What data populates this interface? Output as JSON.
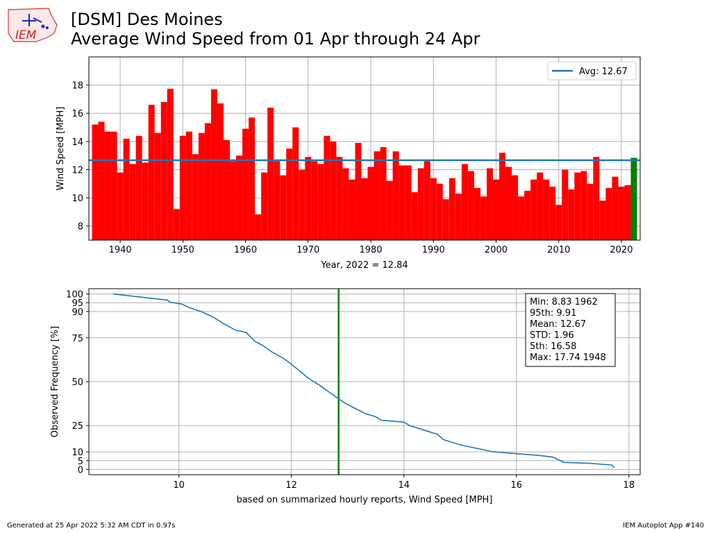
{
  "header": {
    "logo_text": "IEM",
    "title_line1": "[DSM] Des Moines",
    "title_line2": "Average Wind Speed from 01 Apr through 24 Apr"
  },
  "footer": {
    "left": "Generated at 25 Apr 2022 5:32 AM CDT in 0.97s",
    "right": "IEM Autoplot App #140"
  },
  "colors": {
    "bar": "#ff0000",
    "highlight_bar": "#008000",
    "avg_line": "#1f77b4",
    "vline": "#008000"
  },
  "chart_data": [
    {
      "type": "bar",
      "xlabel": "Year, 2022 = 12.84",
      "ylabel": "Wind Speed [MPH]",
      "xlim": [
        1935,
        2023
      ],
      "ylim": [
        7,
        20
      ],
      "xticks": [
        1940,
        1950,
        1960,
        1970,
        1980,
        1990,
        2000,
        2010,
        2020
      ],
      "yticks": [
        8,
        10,
        12,
        14,
        16,
        18
      ],
      "grid": true,
      "legend": {
        "label": "Avg: 12.67",
        "position": "upper right"
      },
      "average": 12.67,
      "highlight_year": 2022,
      "x": [
        1936,
        1937,
        1938,
        1939,
        1940,
        1941,
        1942,
        1943,
        1944,
        1945,
        1946,
        1947,
        1948,
        1949,
        1950,
        1951,
        1952,
        1953,
        1954,
        1955,
        1956,
        1957,
        1958,
        1959,
        1960,
        1961,
        1962,
        1963,
        1964,
        1965,
        1966,
        1967,
        1968,
        1969,
        1970,
        1971,
        1972,
        1973,
        1974,
        1975,
        1976,
        1977,
        1978,
        1979,
        1980,
        1981,
        1982,
        1983,
        1984,
        1985,
        1986,
        1987,
        1988,
        1989,
        1990,
        1991,
        1992,
        1993,
        1994,
        1995,
        1996,
        1997,
        1998,
        1999,
        2000,
        2001,
        2002,
        2003,
        2004,
        2005,
        2006,
        2007,
        2008,
        2009,
        2010,
        2011,
        2012,
        2013,
        2014,
        2015,
        2016,
        2017,
        2018,
        2019,
        2020,
        2021,
        2022
      ],
      "values": [
        15.2,
        15.4,
        14.7,
        14.7,
        11.8,
        14.2,
        12.4,
        14.4,
        12.5,
        16.6,
        14.6,
        16.8,
        17.74,
        9.2,
        14.4,
        14.7,
        13.1,
        14.6,
        15.3,
        17.7,
        16.7,
        14.1,
        12.6,
        13.0,
        14.9,
        15.7,
        8.83,
        11.8,
        16.4,
        12.6,
        11.6,
        13.5,
        15.0,
        12.0,
        12.9,
        12.6,
        12.4,
        14.4,
        14.0,
        12.9,
        12.1,
        11.3,
        13.9,
        11.4,
        12.2,
        13.3,
        13.6,
        11.2,
        13.3,
        12.3,
        12.3,
        10.4,
        12.1,
        12.6,
        11.4,
        11.0,
        9.9,
        11.4,
        10.3,
        12.4,
        11.9,
        10.7,
        10.1,
        12.1,
        11.3,
        13.2,
        12.2,
        11.6,
        10.1,
        10.5,
        11.3,
        11.8,
        11.3,
        10.8,
        9.5,
        12.0,
        10.6,
        11.8,
        11.9,
        11.0,
        12.9,
        9.8,
        10.7,
        11.5,
        10.8,
        10.9,
        12.84
      ]
    },
    {
      "type": "line",
      "xlabel": "based on summarized hourly reports, Wind Speed [MPH]",
      "ylabel": "Observed Frequency [%]",
      "xlim": [
        8.4,
        18.2
      ],
      "ylim": [
        -3,
        103
      ],
      "xticks": [
        10,
        12,
        14,
        16,
        18
      ],
      "yticks": [
        0,
        5,
        10,
        25,
        50,
        75,
        90,
        95,
        100
      ],
      "grid": true,
      "vline": 12.84,
      "x": [
        8.83,
        9.8,
        9.83,
        10.05,
        10.2,
        10.4,
        10.6,
        10.8,
        11.0,
        11.2,
        11.35,
        11.5,
        11.65,
        11.85,
        12.0,
        12.15,
        12.3,
        12.5,
        12.85,
        13.0,
        13.3,
        13.5,
        13.6,
        14.0,
        14.1,
        14.4,
        14.6,
        14.7,
        15.0,
        15.3,
        15.6,
        16.0,
        16.4,
        16.65,
        16.85,
        17.3,
        17.7,
        17.74
      ],
      "y": [
        100,
        96.5,
        95.4,
        94.2,
        92.0,
        90.0,
        87.0,
        83.0,
        79.5,
        78.0,
        73.0,
        70.5,
        67.0,
        63.5,
        60.0,
        56.0,
        52.0,
        48.0,
        40.0,
        37.0,
        32.0,
        30.0,
        28.0,
        27.0,
        25.0,
        22.0,
        20.0,
        17.0,
        14.0,
        12.0,
        10.0,
        9.0,
        8.0,
        7.0,
        4.0,
        3.5,
        2.5,
        1.0
      ]
    }
  ],
  "stats": {
    "lines": [
      "Min: 8.83 1962",
      "95th: 9.91",
      "Mean: 12.67",
      "STD: 1.96",
      "5th: 16.58",
      "Max: 17.74 1948"
    ]
  }
}
